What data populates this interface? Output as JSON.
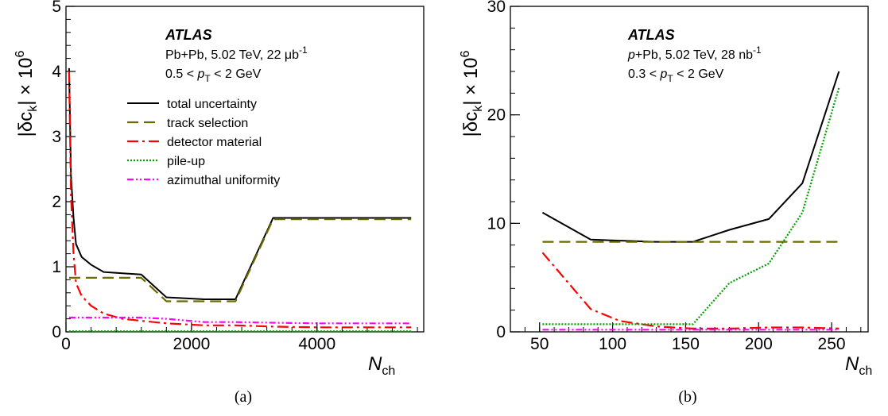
{
  "chart_data": [
    {
      "id": "a",
      "type": "line",
      "panel_label": "(a)",
      "ylabel": "|δc_k| × 10^6",
      "ylabel_parts": {
        "main": "|δc",
        "sub": "k",
        "tail": "| × 10",
        "sup": "6"
      },
      "xlabel_parts": {
        "main": "N",
        "sub": "ch"
      },
      "xlim": [
        0,
        5700
      ],
      "ylim": [
        0,
        5
      ],
      "x_ticks": [
        0,
        2000,
        4000
      ],
      "x_tick_labels": [
        "0",
        "2000",
        "4000"
      ],
      "y_ticks": [
        0,
        1,
        2,
        3,
        4,
        5
      ],
      "y_tick_labels": [
        "0",
        "1",
        "2",
        "3",
        "4",
        "5"
      ],
      "annotation": {
        "experiment": "ATLAS",
        "line1": "Pb+Pb, 5.02 TeV, 22 μb",
        "line1_sup": "-1",
        "line2_pre": "0.5 < ",
        "line2_var": "p",
        "line2_sub": "T",
        "line2_post": " < 2 GeV"
      },
      "legend_position": "upper-right",
      "series": [
        {
          "name": "total uncertainty",
          "color": "#000000",
          "style": "solid",
          "x": [
            50,
            80,
            120,
            160,
            250,
            400,
            600,
            900,
            1200,
            1600,
            2200,
            2700,
            3300,
            4000,
            5500
          ],
          "y": [
            4.05,
            2.4,
            1.75,
            1.35,
            1.15,
            1.03,
            0.92,
            0.9,
            0.88,
            0.53,
            0.5,
            0.5,
            1.75,
            1.75,
            1.75
          ]
        },
        {
          "name": "track selection",
          "color": "#6b6b00",
          "style": "dashed",
          "x": [
            50,
            1200,
            1600,
            2700,
            3300,
            5500
          ],
          "y": [
            0.83,
            0.83,
            0.47,
            0.47,
            1.73,
            1.73
          ]
        },
        {
          "name": "detector material",
          "color": "#ff0000",
          "style": "dashdot",
          "x": [
            50,
            80,
            120,
            160,
            250,
            400,
            600,
            900,
            1200,
            1600,
            2200,
            2700,
            3300,
            4000,
            5500
          ],
          "y": [
            4.0,
            2.1,
            1.2,
            0.75,
            0.55,
            0.4,
            0.28,
            0.2,
            0.17,
            0.13,
            0.1,
            0.1,
            0.08,
            0.07,
            0.07
          ]
        },
        {
          "name": "pile-up",
          "color": "#00a000",
          "style": "dotted",
          "x": [
            50,
            5500
          ],
          "y": [
            0.01,
            0.01
          ]
        },
        {
          "name": "azimuthal uniformity",
          "color": "#ff00ff",
          "style": "dashdotdot",
          "x": [
            50,
            1200,
            1600,
            2200,
            2700,
            3300,
            4000,
            5500
          ],
          "y": [
            0.22,
            0.22,
            0.2,
            0.15,
            0.15,
            0.14,
            0.13,
            0.13
          ]
        }
      ]
    },
    {
      "id": "b",
      "type": "line",
      "panel_label": "(b)",
      "ylabel": "|δc_k| × 10^6",
      "ylabel_parts": {
        "main": "|δc",
        "sub": "k",
        "tail": "| × 10",
        "sup": "6"
      },
      "xlabel_parts": {
        "main": "N",
        "sub": "ch"
      },
      "xlim": [
        30,
        275
      ],
      "ylim": [
        0,
        30
      ],
      "x_ticks": [
        50,
        100,
        150,
        200,
        250
      ],
      "x_tick_labels": [
        "50",
        "100",
        "150",
        "200",
        "250"
      ],
      "y_ticks": [
        0,
        10,
        20,
        30
      ],
      "y_tick_labels": [
        "0",
        "10",
        "20",
        "30"
      ],
      "annotation": {
        "experiment": "ATLAS",
        "line1_var": "p",
        "line1": "+Pb, 5.02 TeV, 28 nb",
        "line1_sup": "-1",
        "line2_pre": "0.3 < ",
        "line2_var": "p",
        "line2_sub": "T",
        "line2_post": " < 2 GeV"
      },
      "series": [
        {
          "name": "total uncertainty",
          "color": "#000000",
          "style": "solid",
          "x": [
            52,
            85,
            130,
            155,
            180,
            207,
            230,
            255
          ],
          "y": [
            11.0,
            8.5,
            8.3,
            8.3,
            9.4,
            10.4,
            13.7,
            24.0
          ]
        },
        {
          "name": "track selection",
          "color": "#6b6b00",
          "style": "dashed",
          "x": [
            52,
            255
          ],
          "y": [
            8.3,
            8.3
          ]
        },
        {
          "name": "detector material",
          "color": "#ff0000",
          "style": "dashdot",
          "x": [
            52,
            85,
            105,
            130,
            155,
            180,
            207,
            230,
            255
          ],
          "y": [
            7.3,
            2.1,
            1.0,
            0.5,
            0.3,
            0.3,
            0.4,
            0.4,
            0.3
          ]
        },
        {
          "name": "pile-up",
          "color": "#00a000",
          "style": "dotted",
          "x": [
            52,
            155,
            180,
            207,
            230,
            255
          ],
          "y": [
            0.7,
            0.7,
            4.5,
            6.3,
            11.0,
            22.5
          ]
        },
        {
          "name": "azimuthal uniformity",
          "color": "#ff00ff",
          "style": "dashdotdot",
          "x": [
            52,
            255
          ],
          "y": [
            0.2,
            0.2
          ]
        }
      ]
    }
  ]
}
